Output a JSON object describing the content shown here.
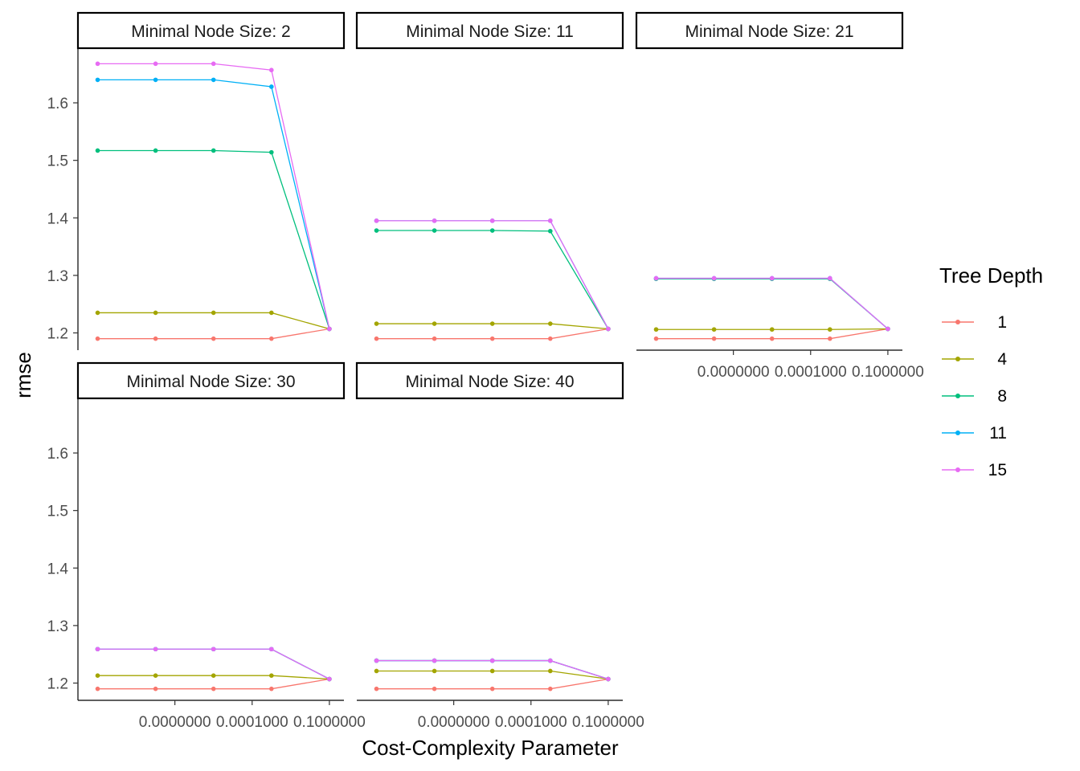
{
  "chart_data": {
    "type": "line",
    "ylabel": "rmse",
    "xlabel": "Cost-Complexity Parameter",
    "ylim": [
      1.17,
      1.695
    ],
    "y_ticks": [
      1.2,
      1.3,
      1.4,
      1.5,
      1.6
    ],
    "y_tick_labels": [
      "1.2",
      "1.3",
      "1.4",
      "1.5",
      "1.6"
    ],
    "x_scale": "log10",
    "xlim_log10": [
      -10.3,
      -0.9
    ],
    "x_ticks_log10": [
      -7,
      -4,
      -1
    ],
    "x_tick_labels": [
      "0.0000000",
      "0.0001000",
      "0.1000000"
    ],
    "x": [
      1e-10,
      1.778e-08,
      3.162e-06,
      0.0005623,
      0.1
    ],
    "legend": {
      "title": "Tree Depth",
      "position": "right",
      "entries": [
        "1",
        "4",
        "8",
        "11",
        "15"
      ]
    },
    "colors": {
      "1": "#F8766D",
      "4": "#A3A500",
      "8": "#00BF7D",
      "11": "#00B0F6",
      "15": "#E76BF3"
    },
    "panels": [
      {
        "strip": "Minimal Node Size: 2",
        "show_x_axis": false,
        "series": [
          {
            "name": "1",
            "values": [
              1.19,
              1.19,
              1.19,
              1.19,
              1.207
            ]
          },
          {
            "name": "4",
            "values": [
              1.235,
              1.235,
              1.235,
              1.235,
              1.207
            ]
          },
          {
            "name": "8",
            "values": [
              1.517,
              1.517,
              1.517,
              1.514,
              1.207
            ]
          },
          {
            "name": "11",
            "values": [
              1.64,
              1.64,
              1.64,
              1.628,
              1.207
            ]
          },
          {
            "name": "15",
            "values": [
              1.668,
              1.668,
              1.668,
              1.657,
              1.207
            ]
          }
        ]
      },
      {
        "strip": "Minimal Node Size: 11",
        "show_x_axis": false,
        "series": [
          {
            "name": "1",
            "values": [
              1.19,
              1.19,
              1.19,
              1.19,
              1.207
            ]
          },
          {
            "name": "4",
            "values": [
              1.216,
              1.216,
              1.216,
              1.216,
              1.207
            ]
          },
          {
            "name": "8",
            "values": [
              1.378,
              1.378,
              1.378,
              1.377,
              1.207
            ]
          },
          {
            "name": "11",
            "values": [
              1.395,
              1.395,
              1.395,
              1.395,
              1.207
            ]
          },
          {
            "name": "15",
            "values": [
              1.395,
              1.395,
              1.395,
              1.395,
              1.207
            ]
          }
        ]
      },
      {
        "strip": "Minimal Node Size: 21",
        "show_x_axis": true,
        "series": [
          {
            "name": "1",
            "values": [
              1.19,
              1.19,
              1.19,
              1.19,
              1.207
            ]
          },
          {
            "name": "4",
            "values": [
              1.206,
              1.206,
              1.206,
              1.206,
              1.207
            ]
          },
          {
            "name": "8",
            "values": [
              1.294,
              1.294,
              1.294,
              1.294,
              1.207
            ]
          },
          {
            "name": "11",
            "values": [
              1.295,
              1.295,
              1.295,
              1.295,
              1.207
            ]
          },
          {
            "name": "15",
            "values": [
              1.295,
              1.295,
              1.295,
              1.295,
              1.207
            ]
          }
        ]
      },
      {
        "strip": "Minimal Node Size: 30",
        "show_x_axis": true,
        "series": [
          {
            "name": "1",
            "values": [
              1.19,
              1.19,
              1.19,
              1.19,
              1.207
            ]
          },
          {
            "name": "4",
            "values": [
              1.213,
              1.213,
              1.213,
              1.213,
              1.207
            ]
          },
          {
            "name": "8",
            "values": [
              1.259,
              1.259,
              1.259,
              1.259,
              1.207
            ]
          },
          {
            "name": "11",
            "values": [
              1.259,
              1.259,
              1.259,
              1.259,
              1.207
            ]
          },
          {
            "name": "15",
            "values": [
              1.259,
              1.259,
              1.259,
              1.259,
              1.207
            ]
          }
        ]
      },
      {
        "strip": "Minimal Node Size: 40",
        "show_x_axis": true,
        "series": [
          {
            "name": "1",
            "values": [
              1.19,
              1.19,
              1.19,
              1.19,
              1.207
            ]
          },
          {
            "name": "4",
            "values": [
              1.221,
              1.221,
              1.221,
              1.221,
              1.207
            ]
          },
          {
            "name": "8",
            "values": [
              1.239,
              1.239,
              1.239,
              1.239,
              1.207
            ]
          },
          {
            "name": "11",
            "values": [
              1.239,
              1.239,
              1.239,
              1.239,
              1.207
            ]
          },
          {
            "name": "15",
            "values": [
              1.239,
              1.239,
              1.239,
              1.239,
              1.207
            ]
          }
        ]
      }
    ]
  }
}
